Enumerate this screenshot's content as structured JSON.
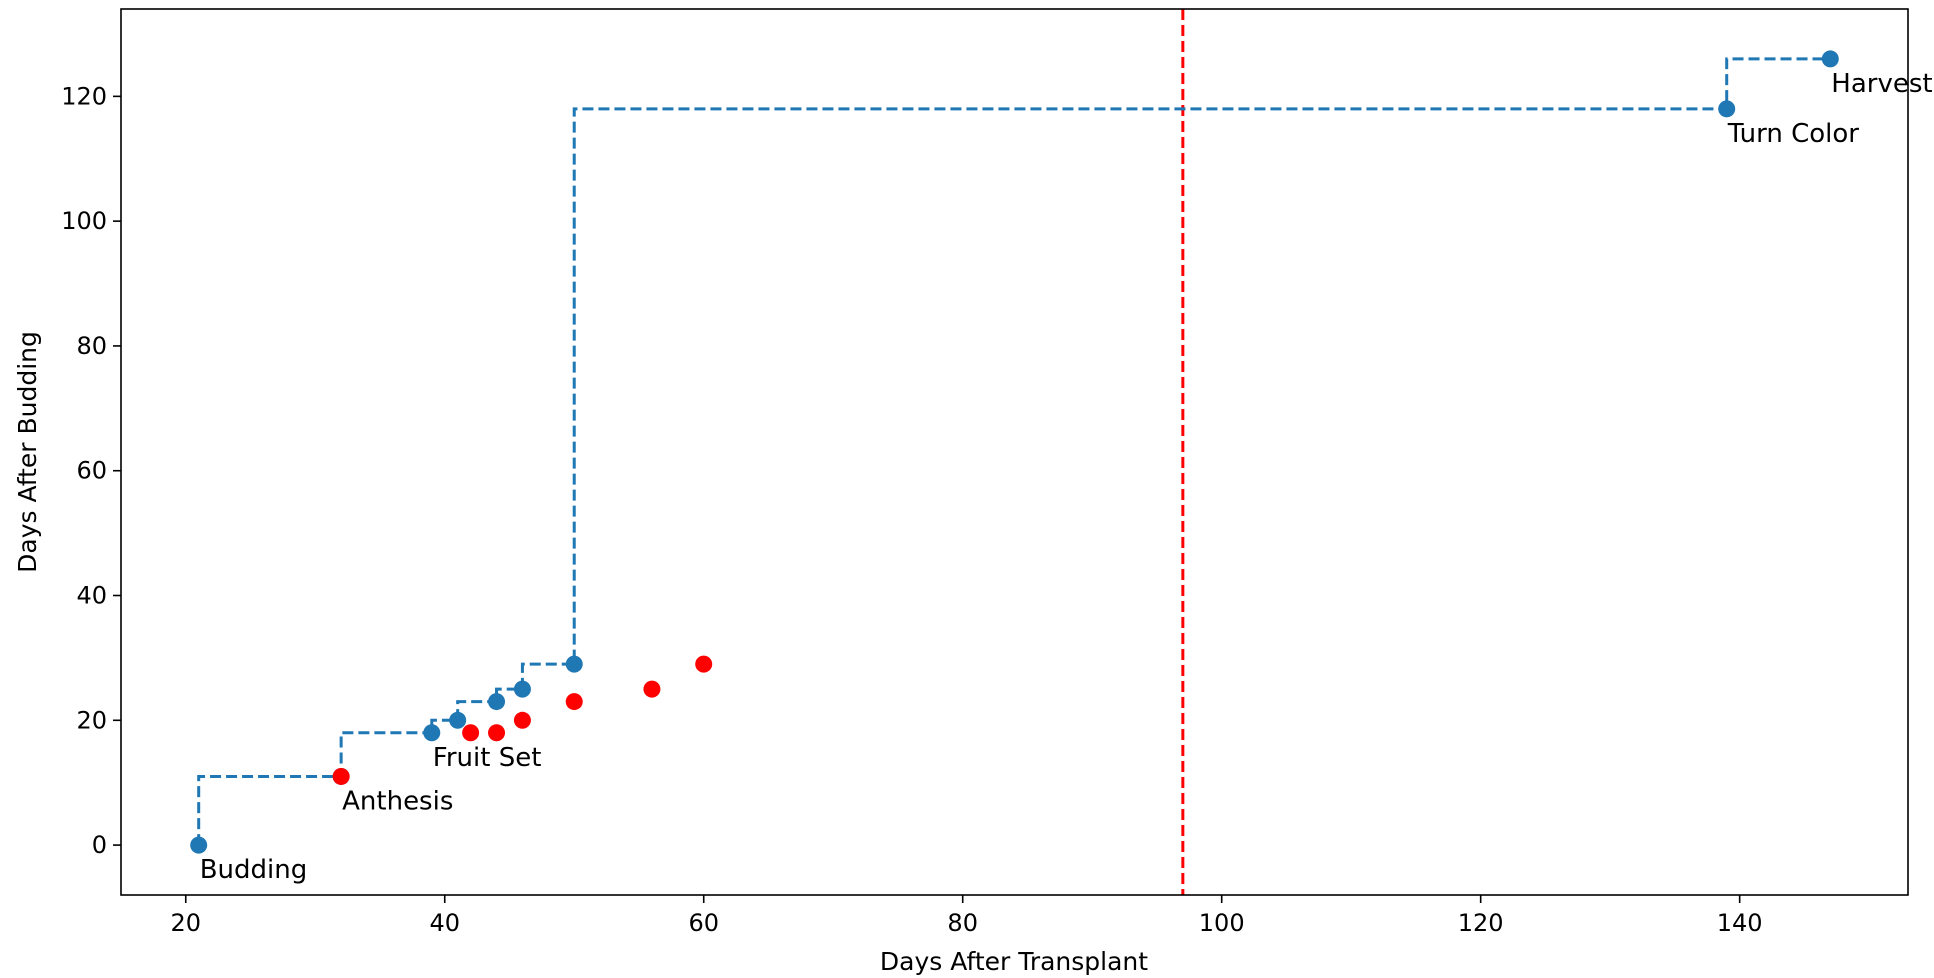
{
  "chart_data": {
    "type": "scatter",
    "xlabel": "Days After Transplant",
    "ylabel": "Days After Budding",
    "xlim": [
      15,
      153
    ],
    "ylim": [
      -8,
      134
    ],
    "xticks": [
      20,
      40,
      60,
      80,
      100,
      120,
      140
    ],
    "yticks": [
      0,
      20,
      40,
      60,
      80,
      100,
      120
    ],
    "grid": false,
    "series": [
      {
        "style": "dashed step line with markers",
        "color": "#1f77b4",
        "points": [
          {
            "x": 21,
            "y": 0
          },
          {
            "x": 32,
            "y": 11
          },
          {
            "x": 39,
            "y": 18
          },
          {
            "x": 41,
            "y": 20
          },
          {
            "x": 44,
            "y": 23
          },
          {
            "x": 46,
            "y": 25
          },
          {
            "x": 50,
            "y": 29
          },
          {
            "x": 139,
            "y": 118
          },
          {
            "x": 147,
            "y": 126
          }
        ]
      },
      {
        "style": "markers",
        "color": "#ff0000",
        "points": [
          {
            "x": 32,
            "y": 11
          },
          {
            "x": 42,
            "y": 18
          },
          {
            "x": 44,
            "y": 18
          },
          {
            "x": 46,
            "y": 20
          },
          {
            "x": 50,
            "y": 23
          },
          {
            "x": 56,
            "y": 25
          },
          {
            "x": 60,
            "y": 29
          }
        ]
      }
    ],
    "vline": {
      "x": 97,
      "color": "#ff0000",
      "style": "dashed"
    },
    "annotations": [
      {
        "text": "Budding",
        "x": 21,
        "y": 0
      },
      {
        "text": "Anthesis",
        "x": 32,
        "y": 11
      },
      {
        "text": "Fruit Set",
        "x": 39,
        "y": 18
      },
      {
        "text": "Turn Color",
        "x": 139,
        "y": 118
      },
      {
        "text": "Harvest",
        "x": 147,
        "y": 126
      }
    ]
  }
}
